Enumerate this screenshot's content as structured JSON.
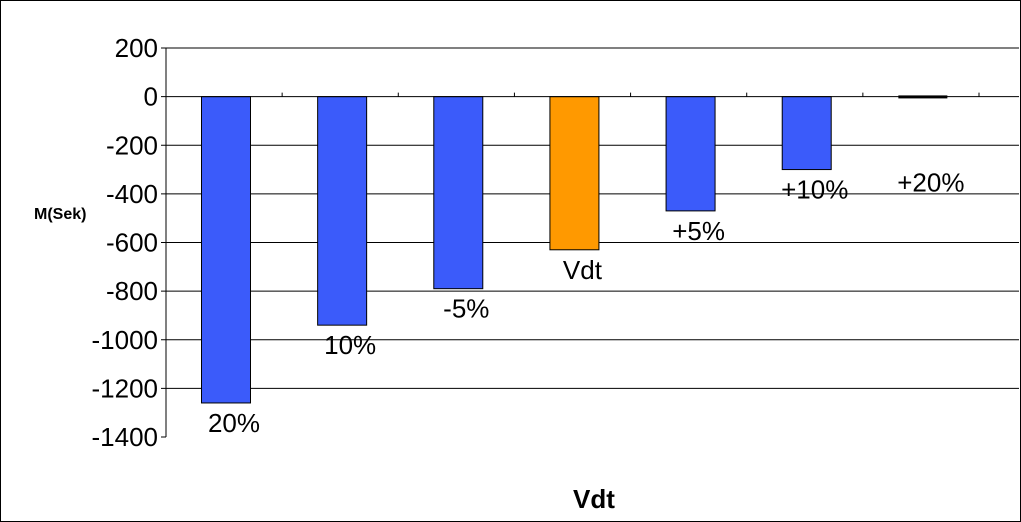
{
  "chart_data": {
    "type": "bar",
    "categories": [
      "20%",
      "10%",
      "-5%",
      "Vdt",
      "+5%",
      "+10%",
      "+20%"
    ],
    "values": [
      -1260,
      -940,
      -790,
      -630,
      -470,
      -300,
      5
    ],
    "xlabel": "Vdt",
    "ylabel": "M(Sek)",
    "ylim": [
      -1400,
      200
    ],
    "yticks": [
      200,
      0,
      -200,
      -400,
      -600,
      -800,
      -1000,
      -1200,
      -1400
    ],
    "grid": true,
    "colors": {
      "default": "#3B5BFA",
      "highlight": "#FF9900",
      "highlight_category": "Vdt",
      "flat_bar": "#000000"
    }
  }
}
